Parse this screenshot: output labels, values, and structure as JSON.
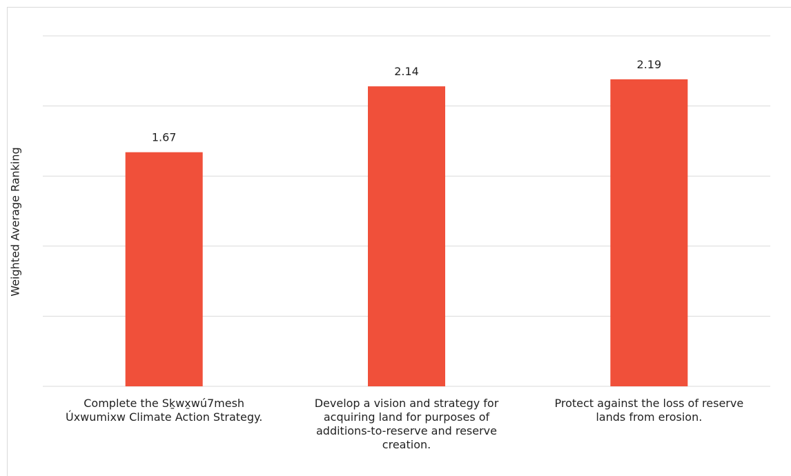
{
  "chart_data": {
    "type": "bar",
    "title": "",
    "xlabel": "",
    "ylabel": "Weighted Average Ranking",
    "categories": [
      "Complete the Sḵwx̱wú7mesh\nÚxwumixw Climate Action Strategy.",
      "Develop a vision and strategy for\nacquiring land for purposes of\nadditions-to-reserve and reserve\ncreation.",
      "Protect against the loss of reserve\nlands from erosion."
    ],
    "values": [
      1.67,
      2.14,
      2.19
    ],
    "value_labels": [
      "1.67",
      "2.14",
      "2.19"
    ],
    "ylim": [
      0,
      2.5
    ],
    "grid": true,
    "bar_color": "#f0503a"
  }
}
